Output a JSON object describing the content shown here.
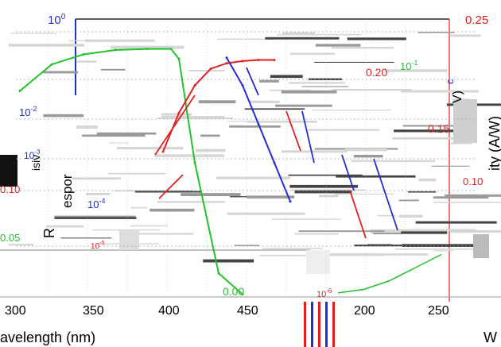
{
  "chart_data": [
    {
      "type": "line",
      "name": "main-panel",
      "xlabel": "avelength (nm)",
      "y_left_label": "espor",
      "y_right_label": "ity (A/W)",
      "x_ticks": [
        300,
        350,
        400,
        450
      ],
      "y_left_ticks": [
        "10^0",
        "10^-2",
        "10^-3",
        "10^-4",
        "10^-5"
      ],
      "y_right_ticks": [
        0.25,
        0.2,
        0.15,
        0.1,
        0.05,
        0.0
      ],
      "ylim_right": [
        0,
        0.25
      ],
      "series": [
        {
          "color": "#22c22a",
          "x": [
            300,
            320,
            340,
            360,
            380,
            395,
            400,
            410,
            425,
            440
          ],
          "y": [
            0.185,
            0.209,
            0.218,
            0.222,
            0.223,
            0.223,
            0.214,
            0.12,
            0.02,
            0.001
          ]
        },
        {
          "color": "#e02020",
          "x": [
            390,
            400,
            410,
            420,
            430,
            440,
            450,
            460
          ],
          "y": [
            0.13,
            0.165,
            0.19,
            0.205,
            0.21,
            0.212,
            0.213,
            0.213
          ]
        },
        {
          "color": "#2030d0",
          "x": [
            430,
            440,
            450,
            460,
            470
          ],
          "y": [
            0.215,
            0.19,
            0.155,
            0.12,
            0.085
          ]
        }
      ]
    },
    {
      "type": "line",
      "name": "inset-panel",
      "xlabel": "W",
      "x_ticks": [
        200,
        250
      ],
      "y_left_ticks": [
        "10^-6"
      ],
      "series": [
        {
          "color": "#22c22a",
          "x": [
            190,
            210,
            230,
            250,
            270
          ],
          "y": [
            0.002,
            0.01,
            0.03,
            0.06,
            0.09
          ]
        }
      ]
    }
  ],
  "texts": {
    "top_exp": "10",
    "top_exp_sup": "0",
    "right_top": "0.25",
    "r20": "0.20",
    "r15": "0.15",
    "r10": "0.10",
    "r05": "0.05",
    "r00": "0.00",
    "l10m1": "10",
    "l10m1_sup": "-1",
    "l10m2": "10",
    "l10m2_sup": "-2",
    "l10m3": "10",
    "l10m3_sup": "-3",
    "l10m4": "10",
    "l10m4_sup": "-4",
    "l10m5": "10",
    "l10m5_sup": "-5",
    "l10m6": "10",
    "l10m6_sup": "-6",
    "fragments": {
      "v": "V)",
      "c": "c",
      "isiv": "isiv",
      "r": "R"
    }
  },
  "colors": {
    "red": "#e02020",
    "blue": "#2030d0",
    "green": "#22c22a",
    "gray": "#c8c8c8",
    "black": "#000000"
  }
}
